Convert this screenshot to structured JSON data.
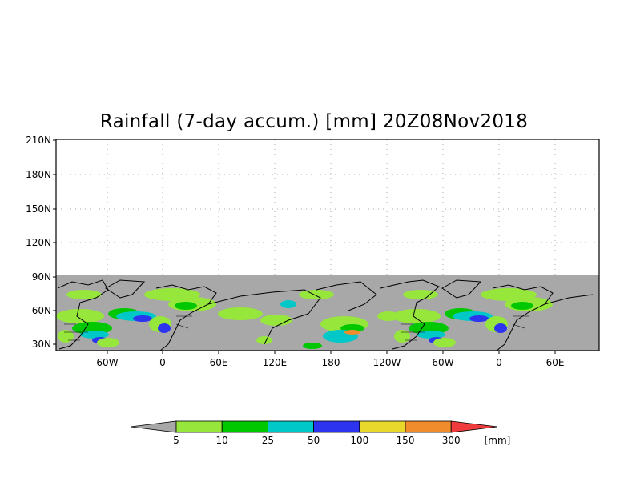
{
  "title": "Rainfall (7-day accum.) [mm] 20Z08Nov2018",
  "y_ticks": [
    "210N",
    "180N",
    "150N",
    "120N",
    "90N",
    "60N",
    "30N"
  ],
  "x_ticks": [
    "60W",
    "0",
    "60E",
    "120E",
    "180",
    "120W",
    "60W",
    "0",
    "60E"
  ],
  "colorbar": {
    "labels": [
      "5",
      "10",
      "25",
      "50",
      "100",
      "150",
      "300"
    ],
    "unit": "[mm]",
    "colors": [
      "#a8a8a8",
      "#96e63c",
      "#00c800",
      "#00c8c8",
      "#2c34f0",
      "#e8d82c",
      "#f08c2c",
      "#f03c3c"
    ]
  },
  "colors": {
    "no_data": "#a8a8a8",
    "coast": "#000000",
    "grid": "#aaaaaa"
  }
}
